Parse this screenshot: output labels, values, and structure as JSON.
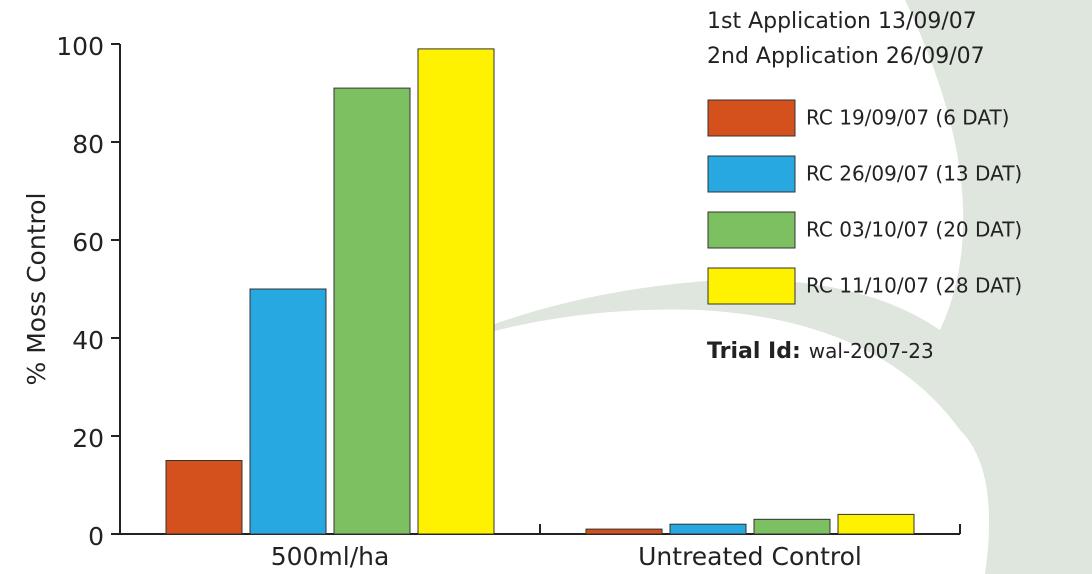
{
  "chart_data": {
    "type": "bar",
    "categories": [
      "500ml/ha",
      "Untreated Control"
    ],
    "series": [
      {
        "name": "RC 19/09/07 (6 DAT)",
        "color": "#d4501c",
        "values": [
          15,
          1
        ]
      },
      {
        "name": "RC 26/09/07 (13 DAT)",
        "color": "#27a8e0",
        "values": [
          50,
          2
        ]
      },
      {
        "name": "RC 03/10/07 (20 DAT)",
        "color": "#7cc062",
        "values": [
          91,
          3
        ]
      },
      {
        "name": "RC 11/10/07 (28 DAT)",
        "color": "#fff200",
        "values": [
          99,
          4
        ]
      }
    ],
    "ylabel": "% Moss Control",
    "ylim": [
      0,
      100
    ],
    "yticks": [
      0,
      20,
      40,
      60,
      80,
      100
    ],
    "annotations": [
      "1st Application 13/09/07",
      "2nd Application 26/09/07"
    ],
    "trial": {
      "label": "Trial Id:",
      "value": "wal-2007-23"
    },
    "legend": "top-right"
  }
}
